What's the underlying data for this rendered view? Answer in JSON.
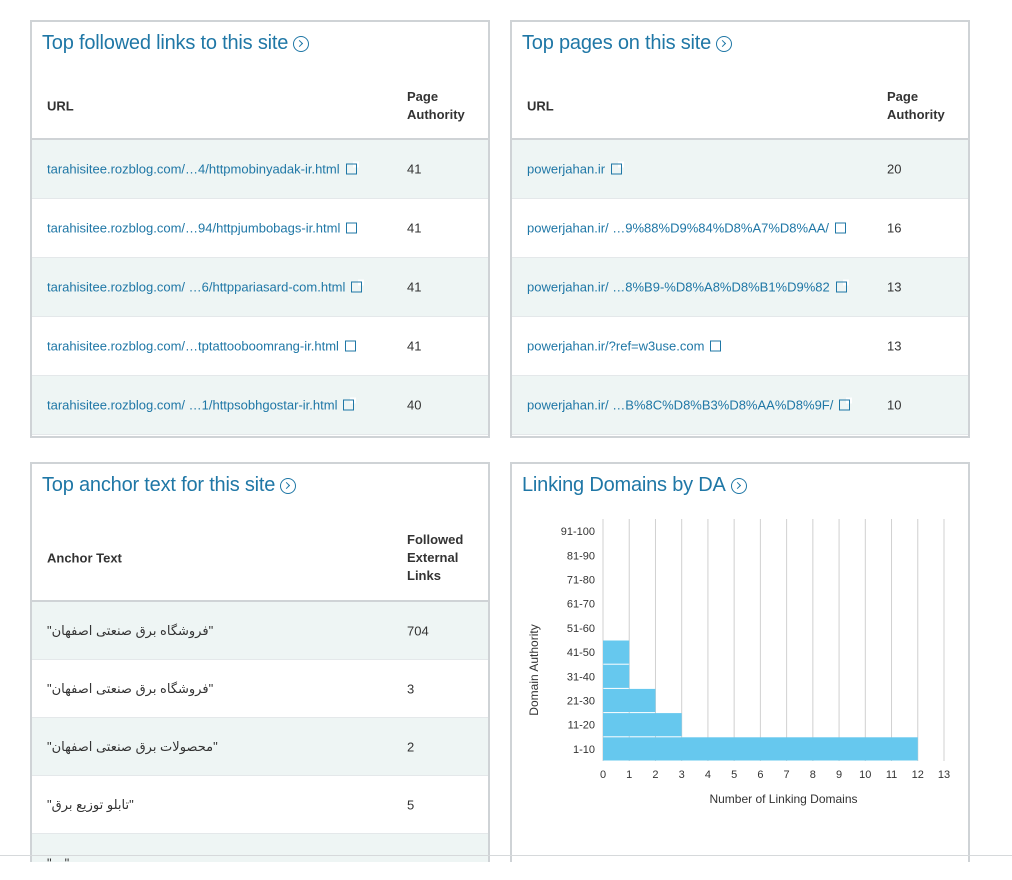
{
  "followed_links": {
    "title": "Top followed links to this site",
    "col_url": "URL",
    "col_pa": "Page Authority",
    "rows": [
      {
        "url": "tarahisitee.rozblog.com/…4/httpmobinyadak-ir.html",
        "pa": "41"
      },
      {
        "url": "tarahisitee.rozblog.com/…94/httpjumbobags-ir.html",
        "pa": "41"
      },
      {
        "url": "tarahisitee.rozblog.com/ …6/httppariasard-com.html",
        "pa": "41"
      },
      {
        "url": "tarahisitee.rozblog.com/…tptattooboomrang-ir.html",
        "pa": "41"
      },
      {
        "url": "tarahisitee.rozblog.com/ …1/httpsobhgostar-ir.html",
        "pa": "40"
      }
    ]
  },
  "top_pages": {
    "title": "Top pages on this site",
    "col_url": "URL",
    "col_pa": "Page Authority",
    "rows": [
      {
        "url": "powerjahan.ir",
        "pa": "20"
      },
      {
        "url": "powerjahan.ir/ …9%88%D9%84%D8%A7%D8%AA/",
        "pa": "16"
      },
      {
        "url": "powerjahan.ir/ …8%B9-%D8%A8%D8%B1%D9%82",
        "pa": "13"
      },
      {
        "url": "powerjahan.ir/?ref=w3use.com",
        "pa": "13"
      },
      {
        "url": "powerjahan.ir/ …B%8C%D8%B3%D8%AA%D8%9F/",
        "pa": "10"
      }
    ]
  },
  "anchor_text": {
    "title": "Top anchor text for this site",
    "col_anchor": "Anchor Text",
    "col_links": "Followed External Links",
    "rows": [
      {
        "text": "\"فروشگاه برق صنعتی اصفهان\"",
        "links": "704"
      },
      {
        "text": "\"فروشگاه برق صنعتی اصفهان\"",
        "links": "3"
      },
      {
        "text": "\"محصولات برق صنعتی اصفهان\"",
        "links": "2"
      },
      {
        "text": "\"تابلو توزیع برق\"",
        "links": "5"
      },
      {
        "text": "\"…\"",
        "links": ""
      }
    ]
  },
  "linking_domains": {
    "title": "Linking Domains by DA"
  },
  "chart_data": {
    "type": "bar",
    "orientation": "horizontal",
    "categories": [
      "1-10",
      "11-20",
      "21-30",
      "31-40",
      "41-50",
      "51-60",
      "61-70",
      "71-80",
      "81-90",
      "91-100"
    ],
    "values": [
      12,
      3,
      2,
      1,
      1,
      0,
      0,
      0,
      0,
      0
    ],
    "xlabel": "Number of Linking Domains",
    "ylabel": "Domain Authority",
    "xlim": [
      0,
      13
    ],
    "xticks": [
      0,
      1,
      2,
      3,
      4,
      5,
      6,
      7,
      8,
      9,
      10,
      11,
      12,
      13
    ],
    "grid": true,
    "bar_color": "#66c8ee"
  }
}
